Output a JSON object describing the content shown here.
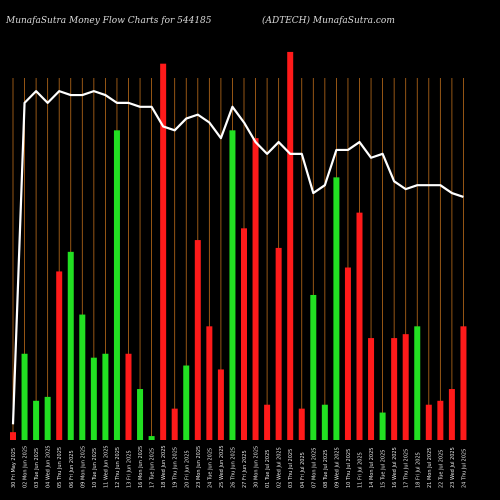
{
  "header": {
    "title": "MunafaSutra  Money Flow  Charts for 544185",
    "subtitle": "(ADTECH) MunafaSutra.com"
  },
  "colors": {
    "background": "#000000",
    "up": "#22e022",
    "down": "#ff1a1a",
    "grid": "#b86a1a",
    "line": "#ffffff",
    "text": "#e6e6e6"
  },
  "chart_data": {
    "type": "bar",
    "bars": {
      "values": [
        2,
        22,
        10,
        11,
        43,
        48,
        32,
        21,
        22,
        79,
        22,
        13,
        1,
        96,
        8,
        19,
        51,
        29,
        18,
        79,
        54,
        77,
        9,
        49,
        99,
        8,
        37,
        9,
        67,
        44,
        58,
        26,
        7,
        26,
        27,
        29,
        9,
        10,
        13,
        29
      ],
      "colors": [
        "red",
        "green",
        "green",
        "green",
        "red",
        "green",
        "green",
        "green",
        "green",
        "green",
        "red",
        "green",
        "green",
        "red",
        "red",
        "green",
        "red",
        "red",
        "red",
        "green",
        "red",
        "red",
        "red",
        "red",
        "red",
        "red",
        "green",
        "green",
        "green",
        "red",
        "red",
        "red",
        "green",
        "red",
        "red",
        "green",
        "red",
        "red",
        "red",
        "red"
      ],
      "ylim": [
        0,
        100
      ]
    },
    "line": {
      "values": [
        4,
        86,
        89,
        86,
        89,
        88,
        88,
        89,
        88,
        86,
        86,
        85,
        85,
        80,
        79,
        82,
        83,
        81,
        77,
        85,
        81,
        76,
        73,
        76,
        73,
        73,
        63,
        65,
        74,
        74,
        76,
        72,
        73,
        66,
        64,
        65,
        65,
        65,
        63,
        62
      ],
      "ylim": [
        0,
        100
      ]
    },
    "x_labels": [
      "30 Fri May 2025",
      "02 Mon Jun 2025",
      "03 Tue Jun 2025",
      "04 Wed Jun 2025",
      "05 Thu Jun 2025",
      "06 Fri Jun 2025",
      "09 Mon Jun 2025",
      "10 Tue Jun 2025",
      "11 Wed Jun 2025",
      "12 Thu Jun 2025",
      "13 Fri Jun 2025",
      "16 Mon Jun 2025",
      "17 Tue Jun 2025",
      "18 Wed Jun 2025",
      "19 Thu Jun 2025",
      "20 Fri Jun 2025",
      "23 Mon Jun 2025",
      "24 Tue Jun 2025",
      "25 Wed Jun 2025",
      "26 Thu Jun 2025",
      "27 Fri Jun 2025",
      "30 Mon Jun 2025",
      "01 Tue Jul 2025",
      "02 Wed Jul 2025",
      "03 Thu Jul 2025",
      "04 Fri Jul 2025",
      "07 Mon Jul 2025",
      "08 Tue Jul 2025",
      "09 Wed Jul 2025",
      "10 Thu Jul 2025",
      "11 Fri Jul 2025",
      "14 Mon Jul 2025",
      "15 Tue Jul 2025",
      "16 Wed Jul 2025",
      "17 Thu Jul 2025",
      "18 Fri Jul 2025",
      "21 Mon Jul 2025",
      "22 Tue Jul 2025",
      "23 Wed Jul 2025",
      "24 Thu Jul 2025"
    ],
    "grid": true
  }
}
